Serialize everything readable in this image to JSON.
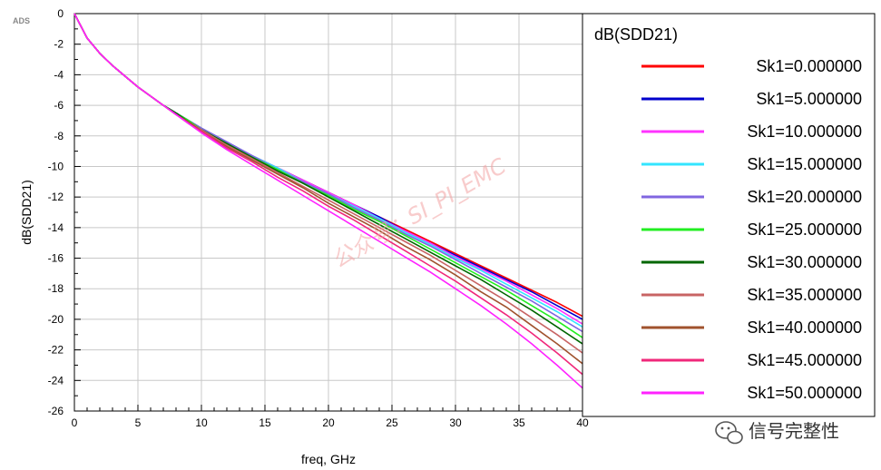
{
  "app_label": "ADS",
  "watermark_text": "公众号：SI_PI_EMC",
  "footer": {
    "text": "信号完整性",
    "icon": "wechat-icon"
  },
  "chart_data": {
    "type": "line",
    "title": "",
    "xlabel": "freq, GHz",
    "ylabel": "dB(SDD21)",
    "xlim": [
      0,
      40
    ],
    "ylim": [
      -26,
      0
    ],
    "x_ticks": [
      0,
      5,
      10,
      15,
      20,
      25,
      30,
      35,
      40
    ],
    "y_ticks": [
      0,
      -2,
      -4,
      -6,
      -8,
      -10,
      -12,
      -14,
      -16,
      -18,
      -20,
      -22,
      -24,
      -26
    ],
    "grid": true,
    "legend_position": "right",
    "legend_title": "dB(SDD21)",
    "x": [
      0,
      1,
      2,
      3,
      4,
      5,
      6,
      7,
      8,
      9,
      10,
      12,
      14,
      16,
      18,
      20,
      22,
      24,
      26,
      28,
      30,
      32,
      34,
      36,
      38,
      40
    ],
    "series": [
      {
        "name": "Sk1=0.000000",
        "color": "#ff0000",
        "values": [
          0,
          -1.6,
          -2.6,
          -3.4,
          -4.1,
          -4.8,
          -5.4,
          -6.0,
          -6.5,
          -7.0,
          -7.5,
          -8.4,
          -9.3,
          -10.1,
          -10.9,
          -11.7,
          -12.5,
          -13.3,
          -14.1,
          -14.9,
          -15.7,
          -16.5,
          -17.3,
          -18.1,
          -18.9,
          -19.8
        ]
      },
      {
        "name": "Sk1=5.000000",
        "color": "#0000cc",
        "values": [
          0,
          -1.6,
          -2.6,
          -3.4,
          -4.1,
          -4.8,
          -5.4,
          -6.0,
          -6.5,
          -7.0,
          -7.5,
          -8.4,
          -9.3,
          -10.1,
          -10.9,
          -11.7,
          -12.5,
          -13.3,
          -14.2,
          -15.0,
          -15.8,
          -16.6,
          -17.4,
          -18.2,
          -19.1,
          -20.0
        ]
      },
      {
        "name": "Sk1=10.000000",
        "color": "#ff33ff",
        "values": [
          0,
          -1.6,
          -2.6,
          -3.4,
          -4.1,
          -4.8,
          -5.4,
          -6.0,
          -6.5,
          -7.0,
          -7.5,
          -8.4,
          -9.3,
          -10.1,
          -10.9,
          -11.7,
          -12.5,
          -13.4,
          -14.2,
          -15.0,
          -15.9,
          -16.7,
          -17.5,
          -18.4,
          -19.3,
          -20.3
        ]
      },
      {
        "name": "Sk1=15.000000",
        "color": "#33e5ff",
        "values": [
          0,
          -1.6,
          -2.6,
          -3.4,
          -4.1,
          -4.8,
          -5.4,
          -6.0,
          -6.5,
          -7.0,
          -7.5,
          -8.4,
          -9.3,
          -10.1,
          -11.0,
          -11.8,
          -12.6,
          -13.4,
          -14.3,
          -15.1,
          -16.0,
          -16.8,
          -17.7,
          -18.6,
          -19.5,
          -20.5
        ]
      },
      {
        "name": "Sk1=20.000000",
        "color": "#8066e0",
        "values": [
          0,
          -1.6,
          -2.6,
          -3.4,
          -4.1,
          -4.8,
          -5.4,
          -6.0,
          -6.5,
          -7.0,
          -7.5,
          -8.4,
          -9.3,
          -10.2,
          -11.0,
          -11.8,
          -12.7,
          -13.5,
          -14.4,
          -15.2,
          -16.1,
          -17.0,
          -17.9,
          -18.8,
          -19.8,
          -20.8
        ]
      },
      {
        "name": "Sk1=25.000000",
        "color": "#22ee22",
        "values": [
          0,
          -1.6,
          -2.6,
          -3.4,
          -4.1,
          -4.8,
          -5.4,
          -6.0,
          -6.5,
          -7.0,
          -7.6,
          -8.5,
          -9.4,
          -10.2,
          -11.1,
          -11.9,
          -12.8,
          -13.6,
          -14.5,
          -15.4,
          -16.3,
          -17.2,
          -18.1,
          -19.1,
          -20.1,
          -21.2
        ]
      },
      {
        "name": "Sk1=30.000000",
        "color": "#006600",
        "values": [
          0,
          -1.6,
          -2.6,
          -3.4,
          -4.1,
          -4.8,
          -5.4,
          -6.0,
          -6.5,
          -7.1,
          -7.6,
          -8.5,
          -9.4,
          -10.3,
          -11.1,
          -12.0,
          -12.9,
          -13.8,
          -14.7,
          -15.6,
          -16.5,
          -17.4,
          -18.4,
          -19.4,
          -20.5,
          -21.6
        ]
      },
      {
        "name": "Sk1=35.000000",
        "color": "#c86464",
        "values": [
          0,
          -1.6,
          -2.6,
          -3.4,
          -4.1,
          -4.8,
          -5.4,
          -6.0,
          -6.6,
          -7.1,
          -7.6,
          -8.6,
          -9.5,
          -10.4,
          -11.3,
          -12.2,
          -13.1,
          -14.0,
          -14.9,
          -15.8,
          -16.8,
          -17.8,
          -18.8,
          -19.9,
          -21.0,
          -22.2
        ]
      },
      {
        "name": "Sk1=40.000000",
        "color": "#a0522d",
        "values": [
          0,
          -1.6,
          -2.6,
          -3.4,
          -4.1,
          -4.8,
          -5.4,
          -6.0,
          -6.6,
          -7.1,
          -7.7,
          -8.7,
          -9.6,
          -10.5,
          -11.4,
          -12.4,
          -13.3,
          -14.2,
          -15.2,
          -16.1,
          -17.1,
          -18.2,
          -19.2,
          -20.4,
          -21.6,
          -22.9
        ]
      },
      {
        "name": "Sk1=45.000000",
        "color": "#f0287a",
        "values": [
          0,
          -1.6,
          -2.6,
          -3.4,
          -4.1,
          -4.8,
          -5.4,
          -6.0,
          -6.6,
          -7.2,
          -7.7,
          -8.8,
          -9.7,
          -10.7,
          -11.6,
          -12.6,
          -13.5,
          -14.5,
          -15.5,
          -16.5,
          -17.5,
          -18.6,
          -19.7,
          -20.9,
          -22.2,
          -23.6
        ]
      },
      {
        "name": "Sk1=50.000000",
        "color": "#ff22ff",
        "values": [
          0,
          -1.6,
          -2.6,
          -3.4,
          -4.1,
          -4.8,
          -5.4,
          -6.0,
          -6.6,
          -7.2,
          -7.8,
          -8.9,
          -9.9,
          -10.9,
          -11.9,
          -12.9,
          -13.9,
          -14.9,
          -15.9,
          -16.9,
          -18.0,
          -19.1,
          -20.3,
          -21.6,
          -23.0,
          -24.5
        ]
      }
    ]
  }
}
